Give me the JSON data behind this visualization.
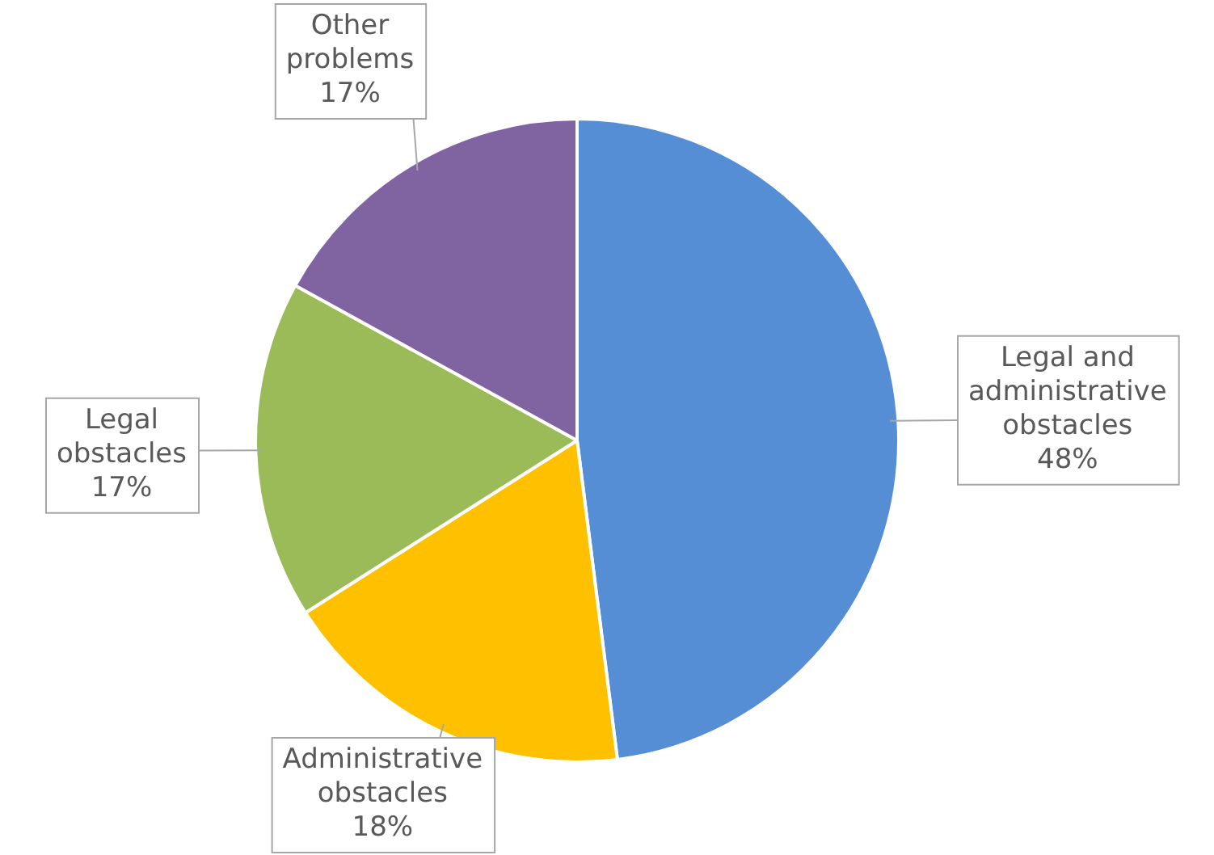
{
  "chart_data": {
    "type": "pie",
    "categories": [
      "Legal and administrative obstacles",
      "Administrative obstacles",
      "Legal obstacles",
      "Other problems"
    ],
    "values": [
      48,
      18,
      17,
      17
    ],
    "value_labels": [
      "48%",
      "18%",
      "17%",
      "17%"
    ],
    "colors": [
      "#558ed5",
      "#ffc000",
      "#9bbb59",
      "#8064a2"
    ],
    "legend": false
  }
}
